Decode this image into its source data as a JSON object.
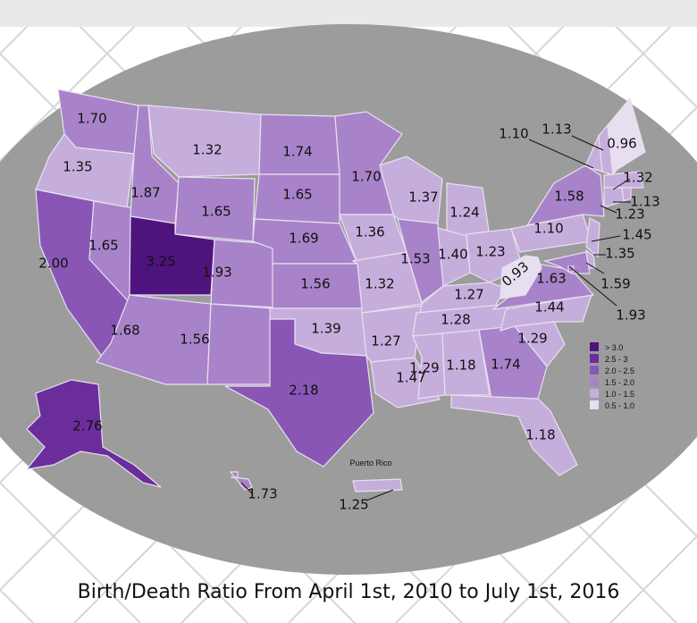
{
  "title": "Birth/Death Ratio From April 1st, 2010 to July 1st, 2016",
  "inset_label": "Puerto Rico",
  "legend": [
    {
      "label": "> 3.0",
      "min": 3.0,
      "color": "#4f137e"
    },
    {
      "label": "2.5 - 3",
      "min": 2.5,
      "color": "#6b2d9c"
    },
    {
      "label": "2.0 - 2.5",
      "min": 2.0,
      "color": "#8a56b6"
    },
    {
      "label": "1.5 - 2.0",
      "min": 1.5,
      "color": "#a883c9"
    },
    {
      "label": "1.0 - 1.5",
      "min": 1.0,
      "color": "#c6aedc"
    },
    {
      "label": "0.5 - 1.0",
      "min": 0.5,
      "color": "#e7def0"
    }
  ],
  "values": {
    "WA": "1.70",
    "OR": "1.35",
    "CA": "2.00",
    "NV": "1.65",
    "ID": "1.87",
    "MT": "1.32",
    "WY": "1.65",
    "UT": "3.25",
    "AZ": "1.68",
    "CO": "1.93",
    "NM": "1.56",
    "ND": "1.74",
    "SD": "1.65",
    "NE": "1.69",
    "KS": "1.56",
    "OK": "1.39",
    "TX": "2.18",
    "MN": "1.70",
    "IA": "1.36",
    "MO": "1.32",
    "AR": "1.27",
    "LA": "1.47",
    "WI": "1.37",
    "IL": "1.53",
    "MI": "1.24",
    "IN": "1.40",
    "OH": "1.23",
    "KY": "1.27",
    "TN": "1.28",
    "MS": "1.29",
    "AL": "1.18",
    "GA": "1.74",
    "FL": "1.18",
    "SC": "1.29",
    "NC": "1.44",
    "VA": "1.63",
    "WV": "0.93",
    "PA": "1.10",
    "NY": "1.58",
    "VT": "1.10",
    "NH": "1.13",
    "ME": "0.96",
    "MA": "1.32",
    "RI": "1.13",
    "CT": "1.23",
    "NJ": "1.45",
    "DE": "1.35",
    "MD": "1.59",
    "DC": "1.93",
    "AK": "2.76",
    "HI": "1.73",
    "PR": "1.25"
  }
}
